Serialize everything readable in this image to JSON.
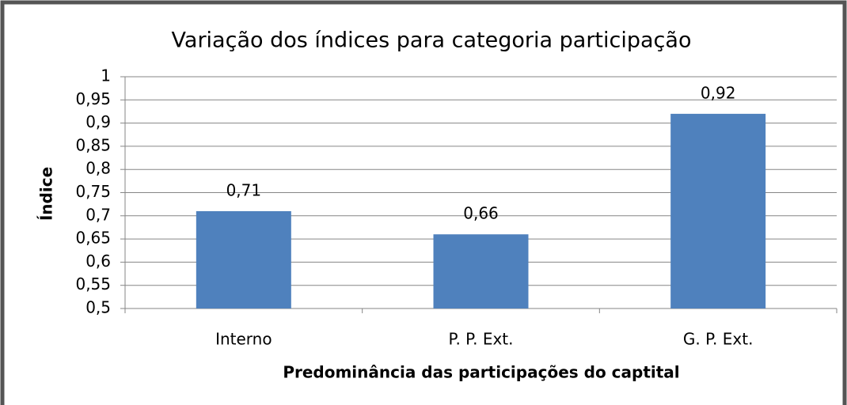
{
  "chart_data": {
    "type": "bar",
    "title": "Variação dos índices para categoria participação",
    "x_label": "Predominância das participações do captital",
    "y_label": "Índice",
    "categories": [
      "Interno",
      "P. P. Ext.",
      "G. P. Ext."
    ],
    "values": [
      0.71,
      0.66,
      0.92
    ],
    "value_labels": [
      "0,71",
      "0,66",
      "0,92"
    ],
    "color": "#4f81bd",
    "ylim": [
      0.5,
      1
    ],
    "yticks": [
      {
        "value": 0.5,
        "label": "0,5"
      },
      {
        "value": 0.55,
        "label": "0,55"
      },
      {
        "value": 0.6,
        "label": "0,6"
      },
      {
        "value": 0.65,
        "label": "0,65"
      },
      {
        "value": 0.7,
        "label": "0,7"
      },
      {
        "value": 0.75,
        "label": "0,75"
      },
      {
        "value": 0.8,
        "label": "0,8"
      },
      {
        "value": 0.85,
        "label": "0,85"
      },
      {
        "value": 0.9,
        "label": "0,9"
      },
      {
        "value": 0.95,
        "label": "0,95"
      },
      1
    ],
    "grid": true
  }
}
